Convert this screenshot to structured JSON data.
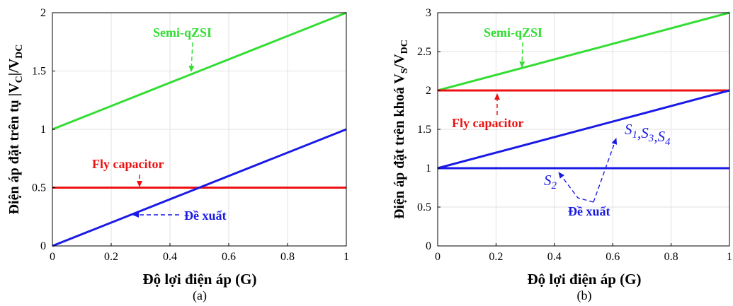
{
  "chart_data": [
    {
      "type": "line",
      "panel": "(a)",
      "xlabel": "Độ lợi điện áp (G)",
      "ylabel_parts": [
        "Điện áp đặt trên tụ |V",
        "C",
        "|/V",
        "DC"
      ],
      "xlim": [
        0,
        1
      ],
      "ylim": [
        0,
        2
      ],
      "x_ticks": [
        "0",
        "0.2",
        "0.4",
        "0.6",
        "0.8",
        "1"
      ],
      "y_ticks": [
        "0",
        "0.5",
        "1",
        "1.5",
        "2"
      ],
      "grid": true,
      "series": [
        {
          "name": "Semi-qZSI",
          "color": "#33dd33",
          "x": [
            0,
            1
          ],
          "y": [
            1,
            2
          ]
        },
        {
          "name": "Fly capacitor",
          "color": "#ee1111",
          "x": [
            0,
            1
          ],
          "y": [
            0.5,
            0.5
          ]
        },
        {
          "name": "Đề xuất",
          "color": "#1a1ae6",
          "x": [
            0,
            1
          ],
          "y": [
            0,
            1
          ]
        }
      ],
      "annotations": [
        {
          "text": "Semi-qZSI",
          "color": "#33dd33"
        },
        {
          "text": "Fly capacitor",
          "color": "#ee1111"
        },
        {
          "text": "Đề xuất",
          "color": "#1a1ae6"
        }
      ]
    },
    {
      "type": "line",
      "panel": "(b)",
      "xlabel": "Độ lợi điện áp (G)",
      "ylabel_parts": [
        "Điện áp đặt trên khoá V",
        "S",
        "/V",
        "DC"
      ],
      "xlim": [
        0,
        1
      ],
      "ylim": [
        0,
        3
      ],
      "x_ticks": [
        "0",
        "0.2",
        "0.4",
        "0.6",
        "0.8",
        "1"
      ],
      "y_ticks": [
        "0",
        "0.5",
        "1",
        "1.5",
        "2",
        "2.5",
        "3"
      ],
      "grid": true,
      "series": [
        {
          "name": "Semi-qZSI",
          "color": "#33dd33",
          "x": [
            0,
            1
          ],
          "y": [
            2,
            3
          ]
        },
        {
          "name": "Fly capacitor",
          "color": "#ee1111",
          "x": [
            0,
            1
          ],
          "y": [
            2,
            2
          ]
        },
        {
          "name": "S1,S3,S4",
          "color": "#1a1ae6",
          "x": [
            0,
            1
          ],
          "y": [
            1,
            2
          ]
        },
        {
          "name": "S2",
          "color": "#1a1ae6",
          "x": [
            0,
            1
          ],
          "y": [
            1,
            1
          ]
        }
      ],
      "annotations": [
        {
          "text": "Semi-qZSI",
          "color": "#33dd33"
        },
        {
          "text": "Fly capacitor",
          "color": "#ee1111"
        },
        {
          "text": "Đề xuất",
          "color": "#1a1ae6"
        },
        {
          "text": "S2",
          "color": "#1a1ae6"
        },
        {
          "text": "S1,S3,S4",
          "color": "#1a1ae6"
        }
      ]
    }
  ]
}
